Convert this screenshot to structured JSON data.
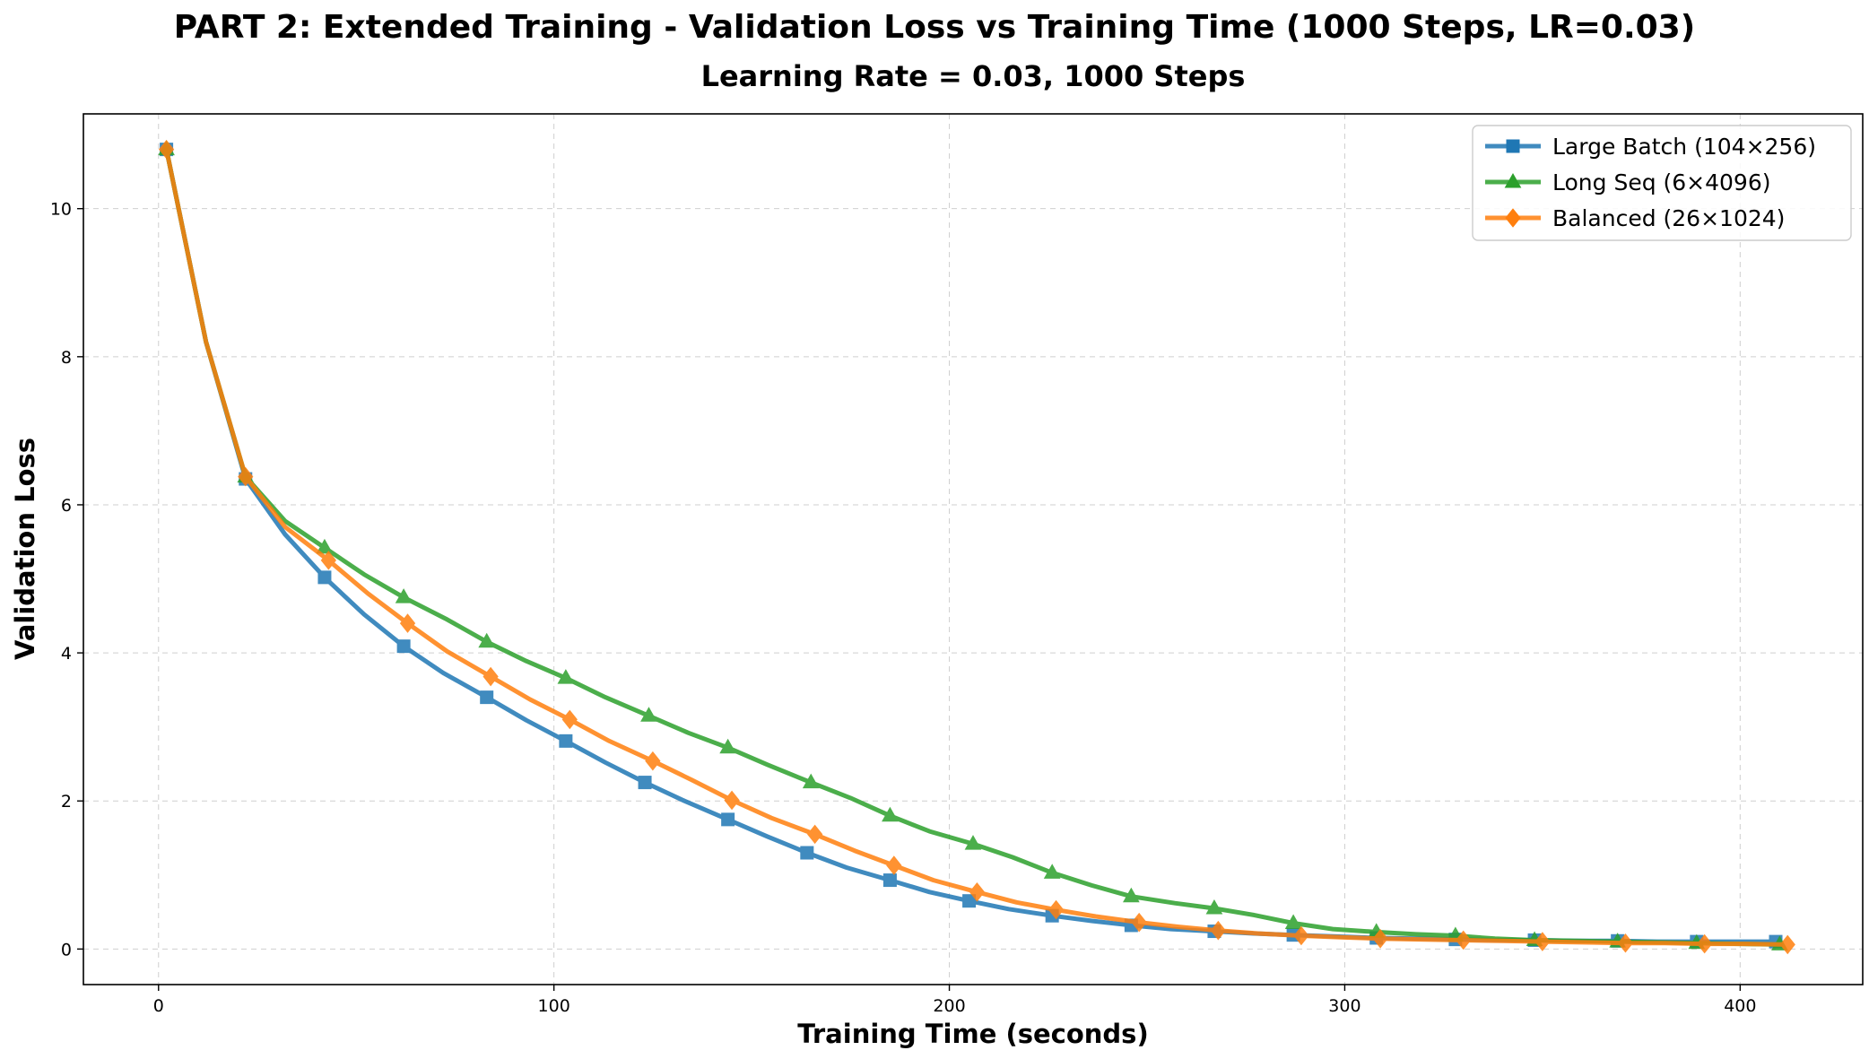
{
  "chart_data": {
    "type": "line",
    "title": "PART 2: Extended Training - Validation Loss vs Training Time (1000 Steps, LR=0.03)",
    "subtitle": "Learning Rate = 0.03, 1000 Steps",
    "xlabel": "Training Time (seconds)",
    "ylabel": "Validation Loss",
    "xlim": [
      -19,
      431
    ],
    "ylim": [
      -0.48,
      11.28
    ],
    "xticks": [
      0,
      100,
      200,
      300,
      400
    ],
    "yticks": [
      0,
      2,
      4,
      6,
      8,
      10
    ],
    "grid": true,
    "legend_position": "top-right",
    "series": [
      {
        "name": "Large Batch (104×256)",
        "color": "#1f77b4",
        "marker": "square",
        "x": [
          2,
          12,
          22,
          32,
          42,
          52,
          62,
          72,
          83,
          93,
          103,
          113,
          123,
          133,
          144,
          154,
          164,
          174,
          185,
          195,
          205,
          215,
          226,
          236,
          246,
          256,
          267,
          277,
          287,
          297,
          308,
          318,
          328,
          338,
          348,
          358,
          369,
          379,
          389,
          399,
          409
        ],
        "y": [
          10.8,
          8.2,
          6.35,
          5.6,
          5.02,
          4.52,
          4.09,
          3.73,
          3.4,
          3.09,
          2.81,
          2.52,
          2.25,
          2.0,
          1.75,
          1.52,
          1.3,
          1.1,
          0.93,
          0.77,
          0.65,
          0.54,
          0.45,
          0.38,
          0.32,
          0.27,
          0.24,
          0.21,
          0.19,
          0.17,
          0.15,
          0.14,
          0.13,
          0.12,
          0.12,
          0.11,
          0.11,
          0.1,
          0.1,
          0.1,
          0.1
        ],
        "marked_x": [
          2,
          22,
          42,
          62,
          83,
          103,
          123,
          144,
          164,
          185,
          205,
          226,
          246,
          267,
          287,
          308,
          328,
          348,
          369,
          389,
          409
        ],
        "marked_y": [
          10.8,
          6.35,
          5.02,
          4.09,
          3.4,
          2.81,
          2.25,
          1.75,
          1.3,
          0.93,
          0.65,
          0.45,
          0.32,
          0.24,
          0.19,
          0.15,
          0.13,
          0.12,
          0.11,
          0.1,
          0.1
        ]
      },
      {
        "name": "Long Seq (6×4096)",
        "color": "#2ca02c",
        "marker": "triangle",
        "x": [
          2,
          12,
          22,
          32,
          42,
          52,
          62,
          73,
          83,
          93,
          103,
          113,
          124,
          134,
          144,
          154,
          165,
          175,
          185,
          195,
          206,
          216,
          226,
          236,
          246,
          257,
          267,
          277,
          287,
          297,
          308,
          318,
          328,
          338,
          348,
          359,
          369,
          379,
          389,
          400,
          410
        ],
        "y": [
          10.8,
          8.2,
          6.38,
          5.78,
          5.42,
          5.06,
          4.75,
          4.45,
          4.15,
          3.89,
          3.66,
          3.4,
          3.15,
          2.92,
          2.72,
          2.49,
          2.25,
          2.04,
          1.8,
          1.59,
          1.42,
          1.24,
          1.03,
          0.86,
          0.71,
          0.62,
          0.55,
          0.46,
          0.35,
          0.27,
          0.23,
          0.2,
          0.18,
          0.14,
          0.12,
          0.11,
          0.1,
          0.09,
          0.08,
          0.07,
          0.06
        ],
        "marked_x": [
          2,
          22,
          42,
          62,
          83,
          103,
          124,
          144,
          165,
          185,
          206,
          226,
          246,
          267,
          287,
          308,
          328,
          348,
          369,
          389,
          410
        ],
        "marked_y": [
          10.8,
          6.38,
          5.42,
          4.75,
          4.15,
          3.66,
          3.15,
          2.72,
          2.25,
          1.8,
          1.42,
          1.03,
          0.71,
          0.55,
          0.35,
          0.23,
          0.18,
          0.12,
          0.1,
          0.08,
          0.06
        ]
      },
      {
        "name": "Balanced (26×1024)",
        "color": "#ff7f0e",
        "marker": "diamond",
        "x": [
          2,
          12,
          22,
          32,
          43,
          53,
          63,
          73,
          84,
          94,
          104,
          114,
          125,
          135,
          145,
          155,
          166,
          176,
          186,
          196,
          207,
          217,
          227,
          237,
          248,
          258,
          268,
          278,
          289,
          299,
          309,
          319,
          330,
          340,
          350,
          360,
          371,
          381,
          391,
          401,
          412
        ],
        "y": [
          10.8,
          8.2,
          6.38,
          5.7,
          5.25,
          4.8,
          4.4,
          4.02,
          3.68,
          3.37,
          3.1,
          2.81,
          2.54,
          2.28,
          2.01,
          1.77,
          1.55,
          1.33,
          1.13,
          0.93,
          0.77,
          0.63,
          0.53,
          0.44,
          0.36,
          0.3,
          0.25,
          0.21,
          0.18,
          0.16,
          0.14,
          0.13,
          0.12,
          0.11,
          0.1,
          0.09,
          0.08,
          0.08,
          0.07,
          0.07,
          0.06
        ],
        "marked_x": [
          2,
          22,
          43,
          63,
          84,
          104,
          125,
          145,
          166,
          186,
          207,
          227,
          248,
          268,
          289,
          309,
          330,
          350,
          371,
          391,
          412
        ],
        "marked_y": [
          10.8,
          6.38,
          5.25,
          4.4,
          3.68,
          3.1,
          2.54,
          2.01,
          1.55,
          1.13,
          0.77,
          0.53,
          0.36,
          0.25,
          0.18,
          0.14,
          0.12,
          0.1,
          0.08,
          0.07,
          0.06
        ]
      }
    ]
  }
}
